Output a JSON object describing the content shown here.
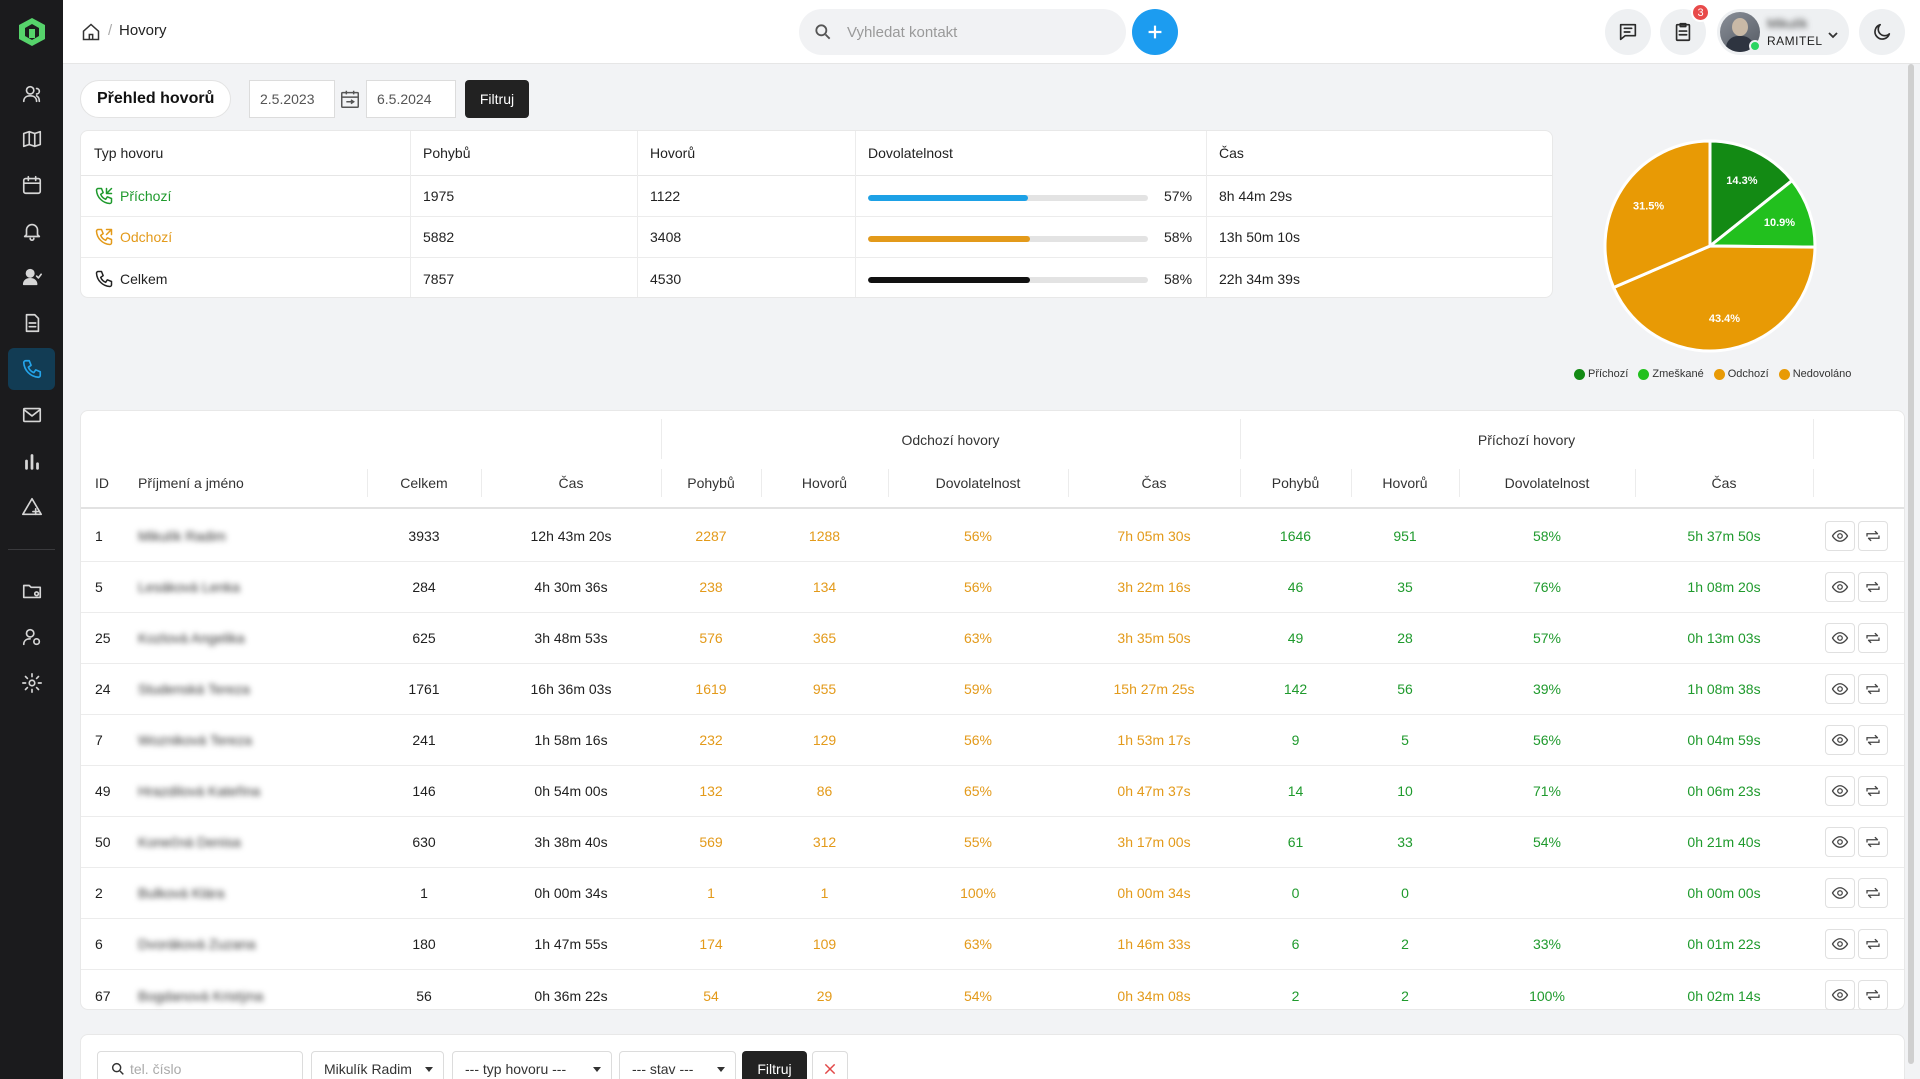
{
  "colors": {
    "incoming": "#1f9a2d",
    "outgoing": "#e39a1a",
    "accent": "#1c9cf0",
    "sidebar": "#1b1b1d"
  },
  "header": {
    "breadcrumb": "Hovory",
    "search_placeholder": "Vyhledat kontakt",
    "notification_count": "3",
    "user_name": "Mikulík",
    "user_company": "RAMITEL"
  },
  "sidebar": {
    "icons": [
      "contacts-icon",
      "map-icon",
      "calendar-icon",
      "bell-icon",
      "users-icon",
      "document-icon",
      "phone-icon",
      "mail-icon",
      "bar-chart-icon",
      "alert-icon",
      "folder-icon",
      "user-settings-icon",
      "gear-icon"
    ]
  },
  "overview": {
    "title": "Přehled hovorů",
    "date_from": "2.5.2023",
    "date_to": "6.5.2024",
    "filter_label": "Filtruj"
  },
  "summary": {
    "headers": [
      "Typ hovoru",
      "Pohybů",
      "Hovorů",
      "Dovolatelnost",
      "Čas"
    ],
    "rows": [
      {
        "type": "Příchozí",
        "moves": "1975",
        "calls": "1122",
        "rate": 57,
        "rate_label": "57%",
        "time": "8h 44m 29s",
        "color": "#1f9a2d",
        "bar": "#1da1e6"
      },
      {
        "type": "Odchozí",
        "moves": "5882",
        "calls": "3408",
        "rate": 58,
        "rate_label": "58%",
        "time": "13h 50m 10s",
        "color": "#e39a1a",
        "bar": "#e39a1a"
      },
      {
        "type": "Celkem",
        "moves": "7857",
        "calls": "4530",
        "rate": 58,
        "rate_label": "58%",
        "time": "22h 34m 39s",
        "color": "#222222",
        "bar": "#111111"
      }
    ]
  },
  "chart_data": {
    "type": "pie",
    "slices": [
      {
        "name": "Příchozí",
        "value": 14.3,
        "label": "14.3%",
        "color": "#138a14"
      },
      {
        "name": "Zmeškané",
        "value": 10.9,
        "label": "10.9%",
        "color": "#22c01e"
      },
      {
        "name": "Odchozí",
        "value": 43.4,
        "label": "43.4%",
        "color": "#e89a05"
      },
      {
        "name": "Nedovoláno",
        "value": 31.5,
        "label": "31.5%",
        "color": "#e89a05"
      }
    ],
    "legend": [
      "Příchozí",
      "Zmeškané",
      "Odchozí",
      "Nedovoláno"
    ],
    "legend_colors": [
      "#138a14",
      "#22c01e",
      "#e89a05",
      "#e89a05"
    ],
    "legend_position": "bottom"
  },
  "table": {
    "group_outgoing": "Odchozí hovory",
    "group_incoming": "Příchozí hovory",
    "headers": [
      "ID",
      "Příjmení a jméno",
      "Celkem",
      "Čas",
      "Pohybů",
      "Hovorů",
      "Dovolatelnost",
      "Čas",
      "Pohybů",
      "Hovorů",
      "Dovolatelnost",
      "Čas"
    ],
    "rows": [
      {
        "id": "1",
        "name": "Mikulík Radim",
        "total": "3933",
        "time": "12h 43m 20s",
        "o_moves": "2287",
        "o_calls": "1288",
        "o_rate": "56%",
        "o_time": "7h 05m 30s",
        "i_moves": "1646",
        "i_calls": "951",
        "i_rate": "58%",
        "i_time": "5h 37m 50s"
      },
      {
        "id": "5",
        "name": "Lesáková Lenka",
        "total": "284",
        "time": "4h 30m 36s",
        "o_moves": "238",
        "o_calls": "134",
        "o_rate": "56%",
        "o_time": "3h 22m 16s",
        "i_moves": "46",
        "i_calls": "35",
        "i_rate": "76%",
        "i_time": "1h 08m 20s"
      },
      {
        "id": "25",
        "name": "Kozlová Angelika",
        "total": "625",
        "time": "3h 48m 53s",
        "o_moves": "576",
        "o_calls": "365",
        "o_rate": "63%",
        "o_time": "3h 35m 50s",
        "i_moves": "49",
        "i_calls": "28",
        "i_rate": "57%",
        "i_time": "0h 13m 03s"
      },
      {
        "id": "24",
        "name": "Studenská Tereza",
        "total": "1761",
        "time": "16h 36m 03s",
        "o_moves": "1619",
        "o_calls": "955",
        "o_rate": "59%",
        "o_time": "15h 27m 25s",
        "i_moves": "142",
        "i_calls": "56",
        "i_rate": "39%",
        "i_time": "1h 08m 38s"
      },
      {
        "id": "7",
        "name": "Wozniková Tereza",
        "total": "241",
        "time": "1h 58m 16s",
        "o_moves": "232",
        "o_calls": "129",
        "o_rate": "56%",
        "o_time": "1h 53m 17s",
        "i_moves": "9",
        "i_calls": "5",
        "i_rate": "56%",
        "i_time": "0h 04m 59s"
      },
      {
        "id": "49",
        "name": "Hrazdilová Kateřina",
        "total": "146",
        "time": "0h 54m 00s",
        "o_moves": "132",
        "o_calls": "86",
        "o_rate": "65%",
        "o_time": "0h 47m 37s",
        "i_moves": "14",
        "i_calls": "10",
        "i_rate": "71%",
        "i_time": "0h 06m 23s"
      },
      {
        "id": "50",
        "name": "Konečná Denisa",
        "total": "630",
        "time": "3h 38m 40s",
        "o_moves": "569",
        "o_calls": "312",
        "o_rate": "55%",
        "o_time": "3h 17m 00s",
        "i_moves": "61",
        "i_calls": "33",
        "i_rate": "54%",
        "i_time": "0h 21m 40s"
      },
      {
        "id": "2",
        "name": "Bulková Klára",
        "total": "1",
        "time": "0h 00m 34s",
        "o_moves": "1",
        "o_calls": "1",
        "o_rate": "100%",
        "o_time": "0h 00m 34s",
        "i_moves": "0",
        "i_calls": "0",
        "i_rate": "",
        "i_time": "0h 00m 00s"
      },
      {
        "id": "6",
        "name": "Dvoráková Zuzana",
        "total": "180",
        "time": "1h 47m 55s",
        "o_moves": "174",
        "o_calls": "109",
        "o_rate": "63%",
        "o_time": "1h 46m 33s",
        "i_moves": "6",
        "i_calls": "2",
        "i_rate": "33%",
        "i_time": "0h 01m 22s"
      },
      {
        "id": "67",
        "name": "Bogdanová Kristýna",
        "total": "56",
        "time": "0h 36m 22s",
        "o_moves": "54",
        "o_calls": "29",
        "o_rate": "54%",
        "o_time": "0h 34m 08s",
        "i_moves": "2",
        "i_calls": "2",
        "i_rate": "100%",
        "i_time": "0h 02m 14s"
      }
    ]
  },
  "bottom_filter": {
    "phone_placeholder": "tel. číslo",
    "user_select": "Mikulík Radim",
    "type_select": "--- typ hovoru ---",
    "state_select": "--- stav ---",
    "filter_label": "Filtruj"
  }
}
